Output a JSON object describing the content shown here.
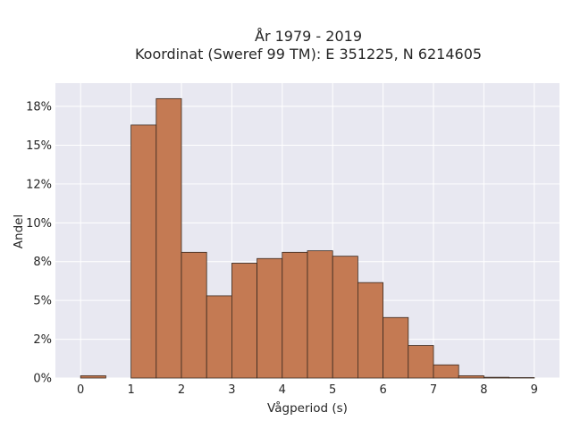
{
  "chart_data": {
    "type": "bar",
    "title_lines": [
      "År 1979 - 2019",
      "Koordinat (Sweref 99 TM): E 351225, N 6214605"
    ],
    "xlabel": "Vågperiod (s)",
    "ylabel": "Andel",
    "xlim": [
      -0.5,
      9.5
    ],
    "ylim": [
      0,
      19
    ],
    "x_ticks": [
      0,
      1,
      2,
      3,
      4,
      5,
      6,
      7,
      8,
      9
    ],
    "y_ticks": [
      0,
      2.5,
      5,
      7.5,
      10,
      12.5,
      15,
      17.5
    ],
    "y_tick_labels": [
      "0%",
      "2%",
      "5%",
      "8%",
      "10%",
      "12%",
      "15%",
      "18%"
    ],
    "bin_width": 0.5,
    "bin_starts": [
      0,
      0.5,
      1,
      1.5,
      2,
      2.5,
      3,
      3.5,
      4,
      4.5,
      5,
      5.5,
      6,
      6.5,
      7,
      7.5,
      8,
      8.5
    ],
    "values": [
      0.15,
      0,
      16.3,
      18.0,
      8.1,
      5.3,
      7.4,
      7.7,
      8.1,
      8.2,
      7.85,
      6.15,
      3.9,
      2.1,
      0.85,
      0.15,
      0.05,
      0.03
    ],
    "bar_color": "#c47a53",
    "bar_edge_color": "#3a2a20",
    "plot_background": "#e8e8f1",
    "grid": true,
    "grid_color": "#ffffff"
  }
}
